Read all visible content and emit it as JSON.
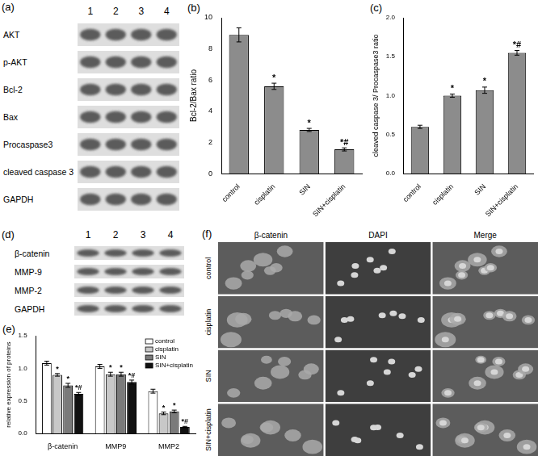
{
  "blots": [
    {
      "panel": "(a)",
      "lanes": [
        1,
        2,
        3,
        4
      ],
      "rows": [
        "AKT",
        "p-AKT",
        "Bcl-2",
        "Bax",
        "Procaspase3",
        "cleaved caspase 3",
        "GAPDH"
      ]
    },
    {
      "panel": "(d)",
      "lanes": [
        1,
        2,
        3,
        4
      ],
      "rows": [
        "β-catenin",
        "MMP-9",
        "MMP-2",
        "GAPDH"
      ]
    }
  ],
  "chart_data": [
    {
      "panel": "(b)",
      "type": "bar",
      "y_label": "Bcl-2/Bax ratio",
      "categories": [
        "control",
        "cisplatin",
        "SIN",
        "SIN+cisplatin"
      ],
      "values": [
        8.9,
        5.6,
        2.8,
        1.55
      ],
      "errors": [
        0.45,
        0.2,
        0.1,
        0.1
      ],
      "annotations": [
        {
          "category": "cisplatin",
          "text": "*"
        },
        {
          "category": "SIN",
          "text": "*"
        },
        {
          "category": "SIN+cisplatin",
          "text": "*#"
        }
      ],
      "color": "#8c8c8c",
      "ylim": [
        0,
        10
      ],
      "yticks": [
        0,
        2,
        4,
        6,
        8,
        10
      ],
      "grid": false
    },
    {
      "panel": "(c)",
      "type": "bar",
      "y_label": "cleaved caspase 3/ Procaspase3 ratio",
      "categories": [
        "control",
        "cisplatin",
        "SIN",
        "SIN+cisplatin"
      ],
      "values": [
        0.6,
        1.0,
        1.07,
        1.55
      ],
      "errors": [
        0.02,
        0.02,
        0.04,
        0.03
      ],
      "annotations": [
        {
          "category": "cisplatin",
          "text": "*"
        },
        {
          "category": "SIN",
          "text": "*"
        },
        {
          "category": "SIN+cisplatin",
          "text": "*#"
        }
      ],
      "color": "#8c8c8c",
      "ylim": [
        0,
        2
      ],
      "yticks": [
        {
          "value": 0,
          "label": "0.0"
        },
        {
          "value": 0.5,
          "label": "0.5"
        },
        {
          "value": 1,
          "label": "1.0"
        },
        {
          "value": 1.5,
          "label": "1.5"
        },
        {
          "value": 2,
          "label": "2.0"
        }
      ],
      "grid": false
    },
    {
      "panel": "(e)",
      "type": "bar",
      "y_label": "relative expression of proteins",
      "categories": [
        "β-catenin",
        "MMP9",
        "MMP2"
      ],
      "series": [
        {
          "name": "control",
          "color": "#ffffff",
          "values": [
            1.08,
            1.03,
            0.65
          ],
          "errors": [
            0.03,
            0.03,
            0.03
          ],
          "annotations": []
        },
        {
          "name": "cisplatin",
          "color": "#c8c8c8",
          "values": [
            0.9,
            0.91,
            0.31
          ],
          "errors": [
            0.02,
            0.03,
            0.02
          ],
          "annotations": [
            {
              "category": "β-catenin",
              "text": "*"
            },
            {
              "category": "MMP9",
              "text": "*"
            },
            {
              "category": "MMP2",
              "text": "*"
            }
          ]
        },
        {
          "name": "SIN",
          "color": "#7a7a7a",
          "values": [
            0.74,
            0.91,
            0.34
          ],
          "errors": [
            0.03,
            0.03,
            0.02
          ],
          "annotations": [
            {
              "category": "β-catenin",
              "text": "*"
            },
            {
              "category": "MMP9",
              "text": "*"
            },
            {
              "category": "MMP2",
              "text": "*"
            }
          ]
        },
        {
          "name": "SIN+cisplatin",
          "color": "#111111",
          "values": [
            0.61,
            0.79,
            0.1
          ],
          "errors": [
            0.02,
            0.03,
            0.01
          ],
          "annotations": [
            {
              "category": "β-catenin",
              "text": "*#"
            },
            {
              "category": "MMP9",
              "text": "*#"
            },
            {
              "category": "MMP2",
              "text": "*#"
            }
          ]
        }
      ],
      "ylim": [
        0,
        1.5
      ],
      "yticks": [
        {
          "value": 0,
          "label": "0.0"
        },
        {
          "value": 0.5,
          "label": "0.5"
        },
        {
          "value": 1,
          "label": "1.0"
        },
        {
          "value": 1.5,
          "label": "1.5"
        }
      ],
      "legend": "upper right",
      "grid": false
    }
  ],
  "images": {
    "panel": "(f)",
    "columns": [
      "β-catenin",
      "DAPI",
      "Merge"
    ],
    "rows": [
      "control",
      "cisplatin",
      "SIN",
      "SIN+cisplatin"
    ]
  }
}
